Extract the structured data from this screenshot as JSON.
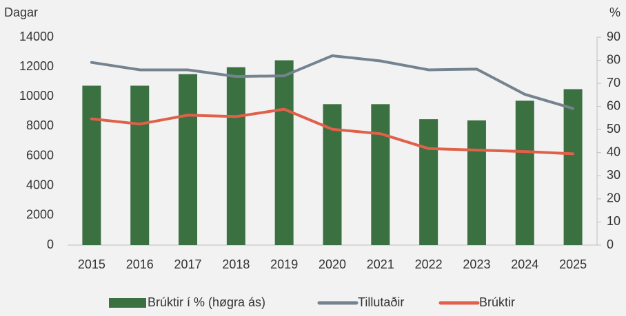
{
  "chart_data": {
    "type": "bar_line",
    "y_label": "Dagar",
    "y2_label": "%",
    "categories": [
      "2015",
      "2016",
      "2017",
      "2018",
      "2019",
      "2020",
      "2021",
      "2022",
      "2023",
      "2024",
      "2025"
    ],
    "series": [
      {
        "name": "Brúktir í % (høgra ás)",
        "type": "bar",
        "axis": "y2",
        "color": "#3b7040",
        "values": [
          69,
          69,
          74,
          77,
          80,
          61,
          61,
          54.5,
          54,
          62.5,
          67.5
        ]
      },
      {
        "name": "Tillutaðir",
        "type": "line",
        "color": "#74838f",
        "values": [
          12300,
          11800,
          11800,
          11350,
          11400,
          12750,
          12400,
          11800,
          11850,
          10150,
          9200
        ]
      },
      {
        "name": "Brúktir",
        "type": "line",
        "color": "#e0604a",
        "values": [
          8500,
          8150,
          8750,
          8650,
          9150,
          7800,
          7500,
          6500,
          6400,
          6300,
          6150
        ]
      }
    ],
    "ylim": [
      0,
      14000
    ],
    "yticks": [
      0,
      2000,
      4000,
      6000,
      8000,
      10000,
      12000,
      14000
    ],
    "y2lim": [
      0,
      90
    ],
    "y2ticks": [
      0,
      10,
      20,
      30,
      40,
      50,
      60,
      70,
      80,
      90
    ],
    "legend": "bottom"
  }
}
